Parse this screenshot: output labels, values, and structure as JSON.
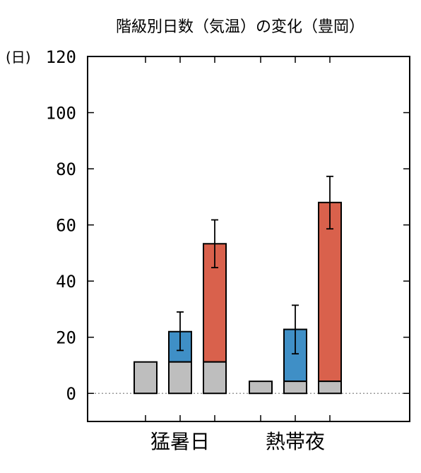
{
  "chart_data": {
    "type": "bar",
    "title": "階級別日数（気温）の変化（豊岡）",
    "y_unit_label": "(日)",
    "ylim": [
      -10,
      120
    ],
    "y_ticks": [
      0,
      20,
      40,
      60,
      80,
      100,
      120
    ],
    "grid": false,
    "legend": "none",
    "categories": [
      "猛暑日",
      "熱帯夜"
    ],
    "groups": [
      {
        "category": "猛暑日",
        "bars": [
          {
            "base": 11.2,
            "total": 11.2,
            "error_low": null,
            "error_high": null,
            "color": "#bebebe"
          },
          {
            "base": 11.2,
            "total": 22.0,
            "error_low": 15.3,
            "error_high": 29.0,
            "color": "#3f8fc6"
          },
          {
            "base": 11.2,
            "total": 53.3,
            "error_low": 44.8,
            "error_high": 61.8,
            "color": "#d9614c"
          }
        ]
      },
      {
        "category": "熱帯夜",
        "bars": [
          {
            "base": 4.3,
            "total": 4.3,
            "error_low": null,
            "error_high": null,
            "color": "#bebebe"
          },
          {
            "base": 4.3,
            "total": 22.8,
            "error_low": 14.1,
            "error_high": 31.4,
            "color": "#3f8fc6"
          },
          {
            "base": 4.3,
            "total": 68.0,
            "error_low": 58.6,
            "error_high": 77.3,
            "color": "#d9614c"
          }
        ]
      }
    ],
    "colors": {
      "base": "#bebebe",
      "increase_mid": "#3f8fc6",
      "increase_high": "#d9614c"
    }
  }
}
